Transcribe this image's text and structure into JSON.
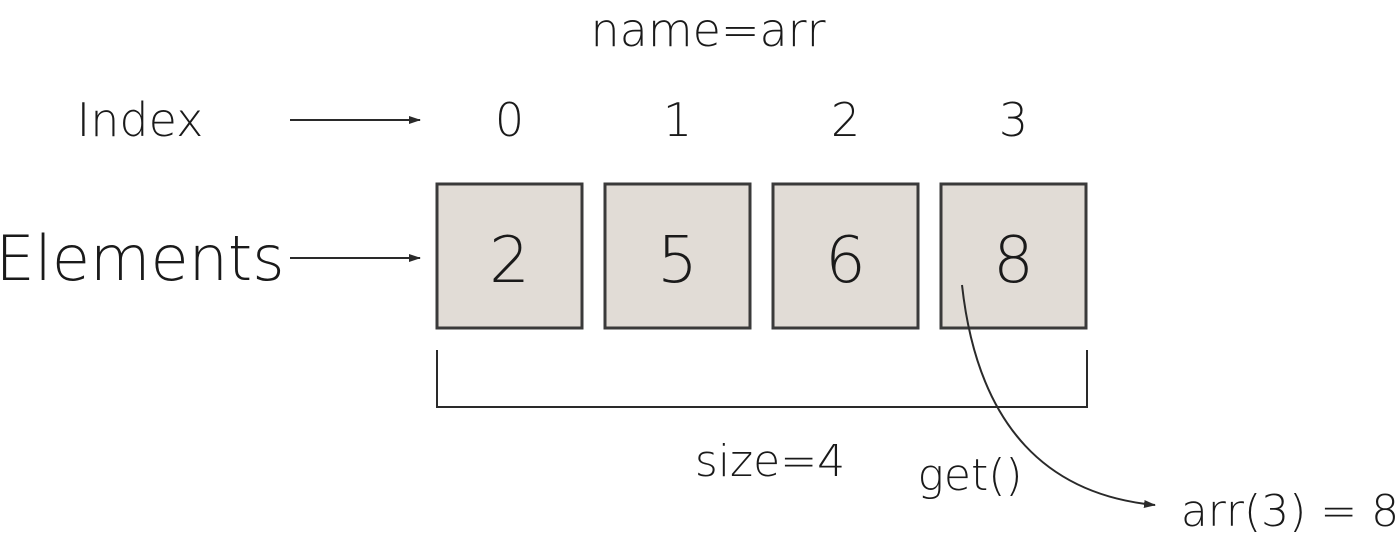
{
  "title": "name=arr",
  "row_labels": {
    "index": "Index",
    "elements": "Elements"
  },
  "indices": [
    "0",
    "1",
    "2",
    "3"
  ],
  "elements": [
    "2",
    "5",
    "6",
    "8"
  ],
  "size_label": "size=4",
  "method_label": "get()",
  "result_label": "arr(3) = 8",
  "colors": {
    "cell_fill": "#e1dcd6",
    "cell_border": "#3a3a3a",
    "text": "#1a1a1a"
  }
}
